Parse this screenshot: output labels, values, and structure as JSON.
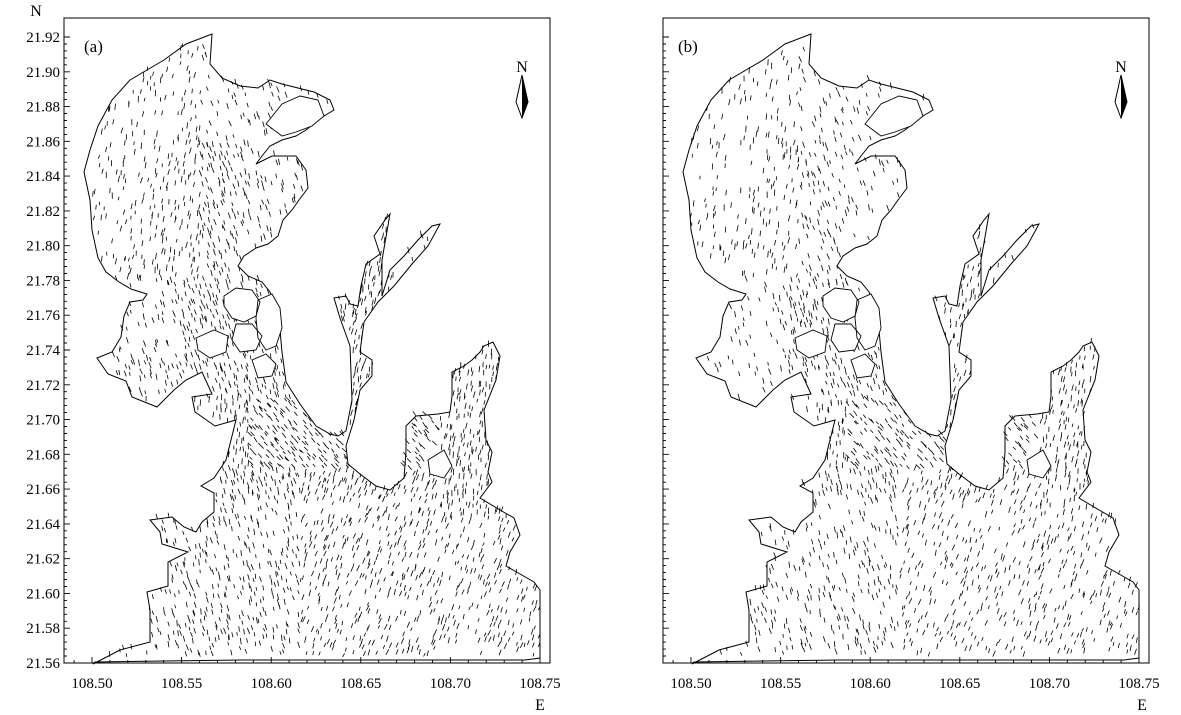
{
  "figure": {
    "panels": [
      {
        "label": "(a)",
        "y_axis_letter": "N",
        "x_axis_letter": "E",
        "north_arrow_label": "N",
        "y_ticks": [
          "21.92",
          "21.90",
          "21.88",
          "21.86",
          "21.84",
          "21.82",
          "21.80",
          "21.78",
          "21.76",
          "21.74",
          "21.72",
          "21.70",
          "21.68",
          "21.66",
          "21.64",
          "21.62",
          "21.60",
          "21.58",
          "21.56"
        ],
        "x_ticks": [
          "108.50",
          "108.55",
          "108.60",
          "108.65",
          "108.70",
          "108.75"
        ],
        "density": 1.0
      },
      {
        "label": "(b)",
        "y_axis_letter": "",
        "x_axis_letter": "E",
        "north_arrow_label": "N",
        "y_ticks": [],
        "x_ticks": [
          "108.50",
          "108.55",
          "108.60",
          "108.65",
          "108.70",
          "108.75"
        ],
        "density": 0.75
      }
    ]
  }
}
